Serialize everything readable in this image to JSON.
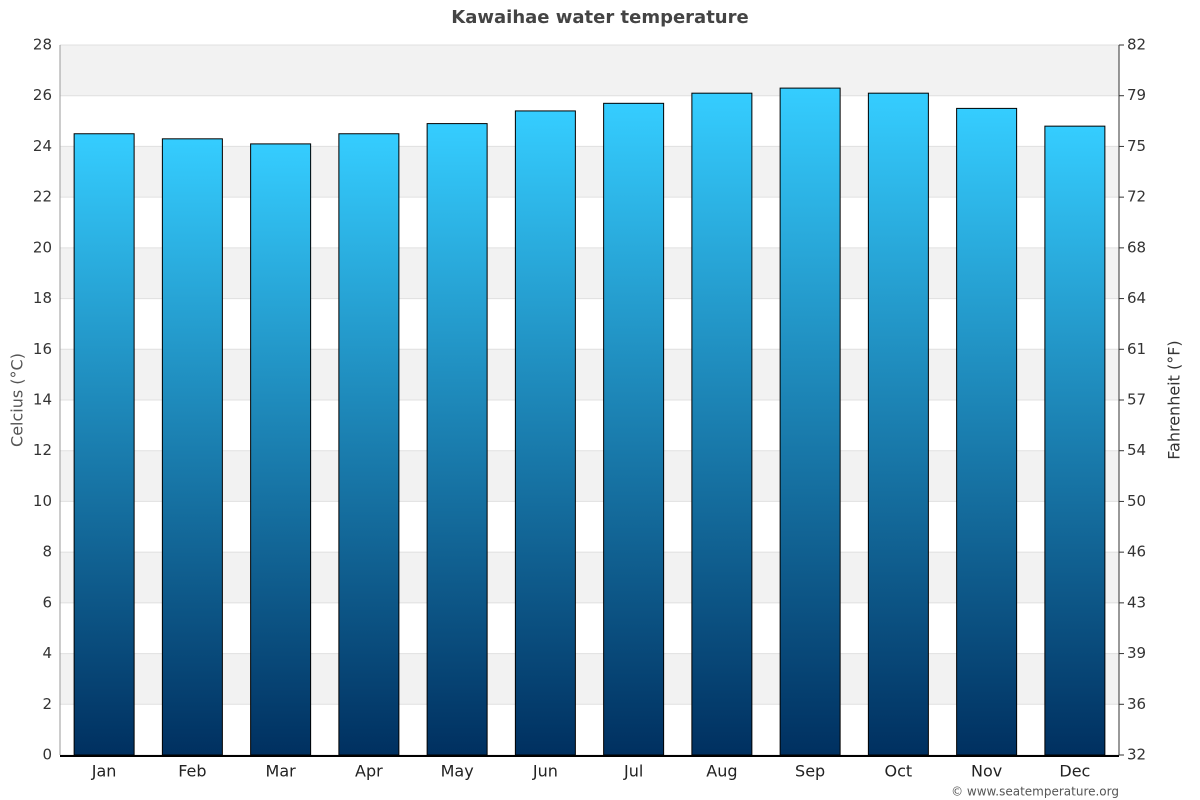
{
  "chart_data": {
    "type": "bar",
    "title": "Kawaihae water temperature",
    "categories": [
      "Jan",
      "Feb",
      "Mar",
      "Apr",
      "May",
      "Jun",
      "Jul",
      "Aug",
      "Sep",
      "Oct",
      "Nov",
      "Dec"
    ],
    "values": [
      24.5,
      24.3,
      24.1,
      24.5,
      24.9,
      25.4,
      25.7,
      26.1,
      26.3,
      26.1,
      25.5,
      24.8
    ],
    "gradient": [
      "#35cdff",
      "#003060"
    ],
    "y_label": "Celcius (°C)",
    "y2_label": "Fahrenheit (°F)",
    "ylim": [
      0,
      28
    ],
    "yticks": [
      0,
      2,
      4,
      6,
      8,
      10,
      12,
      14,
      16,
      18,
      20,
      22,
      24,
      26,
      28
    ],
    "y2lim": [
      32,
      82.4
    ],
    "y2ticks": [
      32,
      {
        "value": 35.6,
        "label": "36"
      },
      {
        "value": 39.2,
        "label": "39"
      },
      {
        "value": 42.8,
        "label": "43"
      },
      {
        "value": 46.4,
        "label": "46"
      },
      50,
      {
        "value": 53.6,
        "label": "54"
      },
      {
        "value": 57.2,
        "label": "57"
      },
      {
        "value": 60.8,
        "label": "61"
      },
      {
        "value": 64.4,
        "label": "64"
      },
      68,
      {
        "value": 71.6,
        "label": "72"
      },
      {
        "value": 75.2,
        "label": "75"
      },
      {
        "value": 78.8,
        "label": "79"
      },
      {
        "value": 82.4,
        "label": "82"
      }
    ],
    "grid": true,
    "source": "© www.seatemperature.org"
  }
}
